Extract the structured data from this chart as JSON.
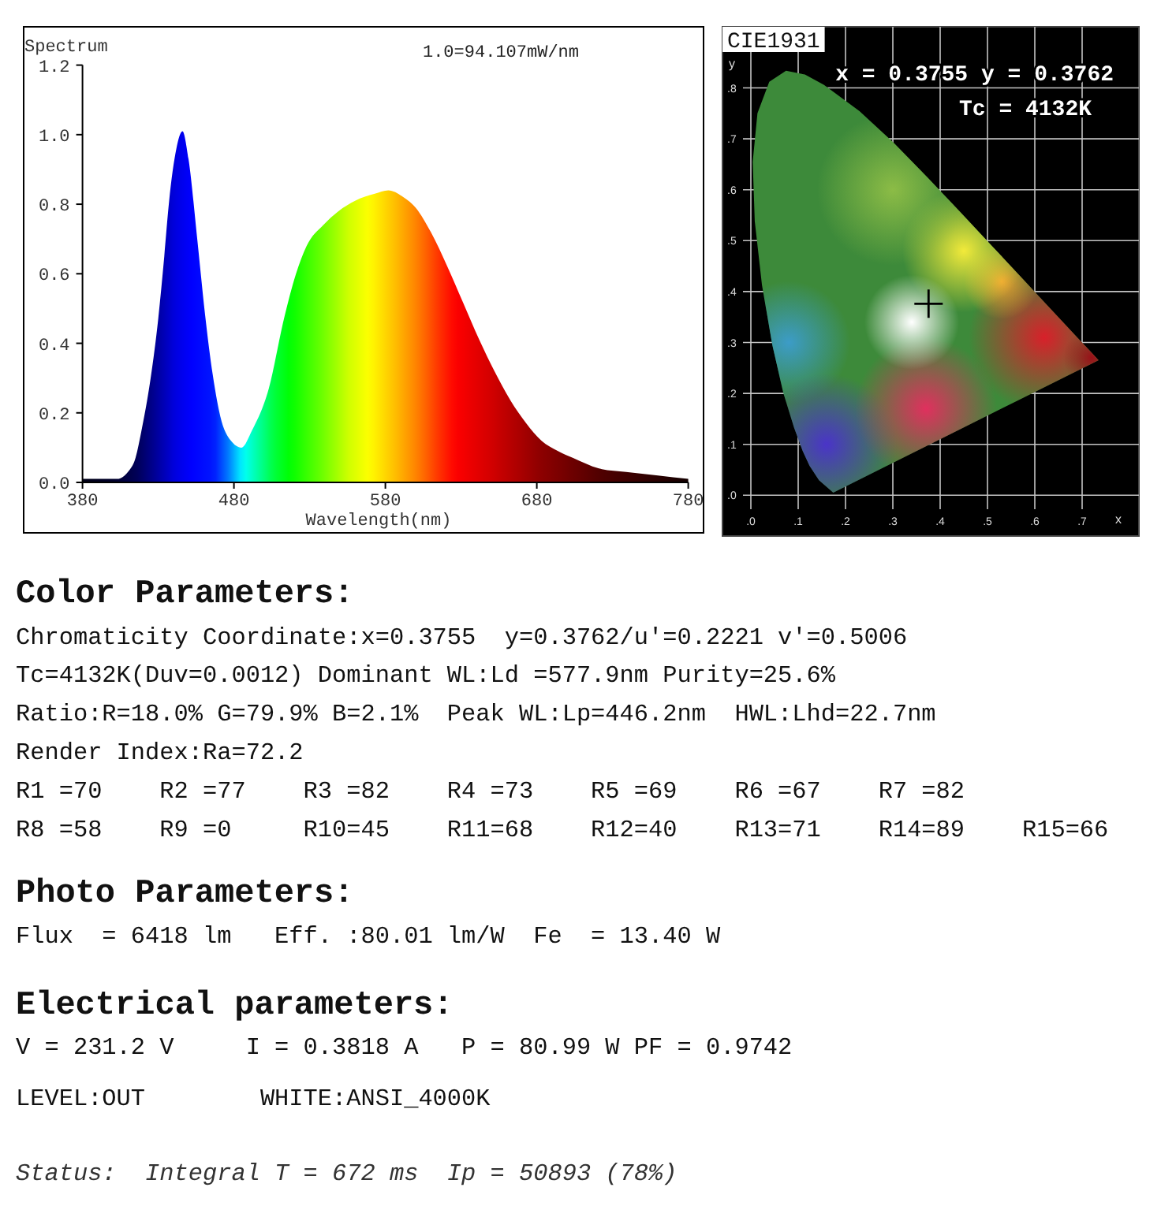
{
  "chart_data": [
    {
      "type": "area",
      "ylabel": "Spectrum",
      "xlabel": "Wavelength(nm)",
      "annotations": [
        "1.0=94.107mW/nm"
      ],
      "x": [
        380,
        395,
        403,
        410,
        415,
        419,
        425,
        430,
        434,
        437,
        442,
        446,
        450,
        456,
        461,
        466,
        471,
        478,
        485,
        492,
        503,
        513,
        521,
        528,
        539,
        549,
        560,
        573,
        582,
        592,
        600,
        610,
        621,
        631,
        642,
        652,
        662,
        673,
        683,
        694,
        704,
        721,
        739,
        760,
        780
      ],
      "values": [
        0.01,
        0.01,
        0.01,
        0.03,
        0.07,
        0.15,
        0.3,
        0.47,
        0.65,
        0.8,
        0.96,
        1.01,
        0.93,
        0.69,
        0.48,
        0.31,
        0.19,
        0.12,
        0.1,
        0.15,
        0.27,
        0.47,
        0.6,
        0.68,
        0.74,
        0.78,
        0.81,
        0.83,
        0.84,
        0.82,
        0.79,
        0.72,
        0.62,
        0.52,
        0.41,
        0.32,
        0.24,
        0.17,
        0.12,
        0.09,
        0.07,
        0.04,
        0.03,
        0.02,
        0.01
      ],
      "xlim": [
        380,
        780
      ],
      "xticks": [
        380,
        480,
        580,
        680,
        780
      ],
      "ylim": [
        0,
        1.2
      ],
      "yticks": [
        {
          "value": 0,
          "label": "0.0"
        },
        0.2,
        0.4,
        0.6,
        0.8,
        {
          "value": 1,
          "label": "1.0"
        },
        1.2
      ]
    },
    {
      "type": "scatter",
      "title": "CIE1931",
      "xlabel": "x",
      "ylabel": "y",
      "annotations": [
        "x = 0.3755 y = 0.3762",
        "Tc = 4132K"
      ],
      "x": [
        0.3755
      ],
      "values": [
        0.3762
      ],
      "color": "#000000",
      "marker": "cross",
      "grid": true,
      "xlim": [
        -0.06,
        0.82
      ],
      "ylim": [
        -0.08,
        0.92
      ],
      "xticks": [
        {
          "value": 0,
          "label": ".0"
        },
        {
          "value": 0.1,
          "label": ".1"
        },
        {
          "value": 0.2,
          "label": ".2"
        },
        {
          "value": 0.3,
          "label": ".3"
        },
        {
          "value": 0.4,
          "label": ".4"
        },
        {
          "value": 0.5,
          "label": ".5"
        },
        {
          "value": 0.6,
          "label": ".6"
        },
        {
          "value": 0.7,
          "label": ".7"
        }
      ],
      "yticks": [
        {
          "value": 0,
          "label": ".0"
        },
        {
          "value": 0.1,
          "label": ".1"
        },
        {
          "value": 0.2,
          "label": ".2"
        },
        {
          "value": 0.3,
          "label": ".3"
        },
        {
          "value": 0.4,
          "label": ".4"
        },
        {
          "value": 0.5,
          "label": ".5"
        },
        {
          "value": 0.6,
          "label": ".6"
        },
        {
          "value": 0.7,
          "label": ".7"
        },
        {
          "value": 0.8,
          "label": ".8"
        }
      ]
    },
    {
      "type": "other",
      "title": "Color Parameters:",
      "annotations": [
        "Chromaticity Coordinate:x=0.3755  y=0.3762/u'=0.2221 v'=0.5006",
        "Tc=4132K(Duv=0.0012) Dominant WL:Ld =577.9nm Purity=25.6%",
        "Ratio:R=18.0% G=79.9% B=2.1%  Peak WL:Lp=446.2nm  HWL:Lhd=22.7nm",
        "Render Index:Ra=72.2",
        "R1 =70    R2 =77    R3 =82    R4 =73    R5 =69    R6 =67    R7 =82",
        "R8 =58    R9 =0     R10=45    R11=68    R12=40    R13=71    R14=89    R15=66"
      ]
    },
    {
      "type": "other",
      "title": "Photo Parameters:",
      "annotations": [
        "Flux  = 6418 lm   Eff. :80.01 lm/W  Fe  = 13.40 W"
      ]
    },
    {
      "type": "other",
      "title": "Electrical parameters:",
      "annotations": [
        "V = 231.2 V     I = 0.3818 A   P = 80.99 W PF = 0.9742",
        "LEVEL:OUT        WHITE:ANSI_4000K"
      ]
    },
    {
      "type": "other",
      "annotations": [
        "Status:  Integral T = 672 ms  Ip = 50893 (78%)"
      ]
    }
  ]
}
